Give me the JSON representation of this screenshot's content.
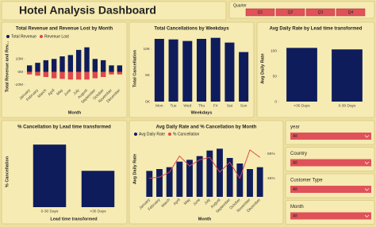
{
  "title": "Hotel Analysis Dashboard",
  "quarter_slicer": {
    "label": "Quarter",
    "options": [
      "Q1",
      "Q2",
      "Q3",
      "Q4"
    ]
  },
  "slicers": [
    {
      "label": "year",
      "value": "All"
    },
    {
      "label": "Country",
      "value": "All"
    },
    {
      "label": "Customer Type",
      "value": "All"
    },
    {
      "label": "Month",
      "value": "All"
    }
  ],
  "chart_data": [
    {
      "type": "bar",
      "title": "Total Revenue and Revenue Lost by Month",
      "x_label": "Month",
      "y_label": "Total Revenue and Rev...",
      "categories": [
        "January",
        "February",
        "March",
        "April",
        "May",
        "June",
        "July",
        "August",
        "September",
        "October",
        "November",
        "December"
      ],
      "series": [
        {
          "name": "Total Revenue",
          "color": "#0f1c5c",
          "values": [
            5,
            7,
            9,
            10,
            12,
            13,
            17,
            19,
            10,
            9,
            5,
            5
          ]
        },
        {
          "name": "Revenue Lost",
          "color": "#e0474c",
          "values": [
            -2,
            -3,
            -4,
            -5,
            -5.5,
            -6,
            -6,
            -6,
            -5,
            -4,
            -2,
            -2
          ]
        }
      ],
      "ylim": [
        -12,
        20
      ],
      "yticks": [
        {
          "value": 10,
          "label": "10M"
        },
        {
          "value": 0,
          "label": "0M"
        },
        {
          "value": -10,
          "label": "-10M"
        }
      ],
      "legend": true
    },
    {
      "type": "bar",
      "title": "Total Cancellations by Weekdays",
      "x_label": "Weekdays",
      "y_label": "Total Cancellation",
      "categories": [
        "Mon",
        "Tue",
        "Wed",
        "Thu",
        "Fri",
        "Sat",
        "Sun"
      ],
      "series": [
        {
          "color": "#0f1c5c",
          "values": [
            11.9,
            11.8,
            11.5,
            11.9,
            12.1,
            11.2,
            9.4
          ]
        }
      ],
      "ylim": [
        0,
        12.5
      ],
      "yticks": [
        {
          "value": 10,
          "label": "10K"
        },
        {
          "value": 5,
          "label": "5K"
        },
        {
          "value": 0,
          "label": "0K"
        }
      ],
      "legend": false
    },
    {
      "type": "bar",
      "title": "Avg Daily Rate by Lead time transformed",
      "y_label": "Avg Daily Rate",
      "categories": [
        ">30 Days",
        "0-30 Days"
      ],
      "series": [
        {
          "color": "#0f1c5c",
          "values": [
            106,
            103
          ]
        }
      ],
      "ylim": [
        0,
        130
      ],
      "yticks": [
        100,
        50,
        0
      ],
      "legend": false
    },
    {
      "type": "bar",
      "title": "% Cancellation by Lead time transformed",
      "x_label": "Lead time transformed",
      "y_label": "% Cancellation",
      "categories": [
        "0-30 Days",
        ">30 Days"
      ],
      "series": [
        {
          "color": "#0f1c5c",
          "values": [
            62,
            36
          ]
        }
      ],
      "ylim": [
        0,
        70
      ],
      "legend": false
    },
    {
      "type": "combo",
      "title": "Avg Daily Rate and % Cancellation by Month",
      "x_label": "Month",
      "y_label": "Avg Daily Rate",
      "categories": [
        "January",
        "February",
        "March",
        "April",
        "May",
        "June",
        "July",
        "August",
        "September",
        "October",
        "November",
        "December"
      ],
      "series": [
        {
          "name": "Avg Daily Rate",
          "color": "#0f1c5c",
          "values": [
            70,
            75,
            80,
            95,
            100,
            110,
            125,
            130,
            105,
            90,
            75,
            80
          ]
        },
        {
          "name": "% Cancellation",
          "color": "#e0474c",
          "axis": "y2",
          "values": [
            45,
            46,
            50,
            63,
            55,
            60,
            62,
            50,
            58,
            45,
            68,
            62
          ]
        }
      ],
      "ylim": [
        0,
        150
      ],
      "y2lim": [
        30,
        75
      ],
      "y2ticks": [
        {
          "value": 65,
          "label": "65%"
        },
        {
          "value": 45,
          "label": "45%"
        }
      ],
      "legend": true
    }
  ]
}
